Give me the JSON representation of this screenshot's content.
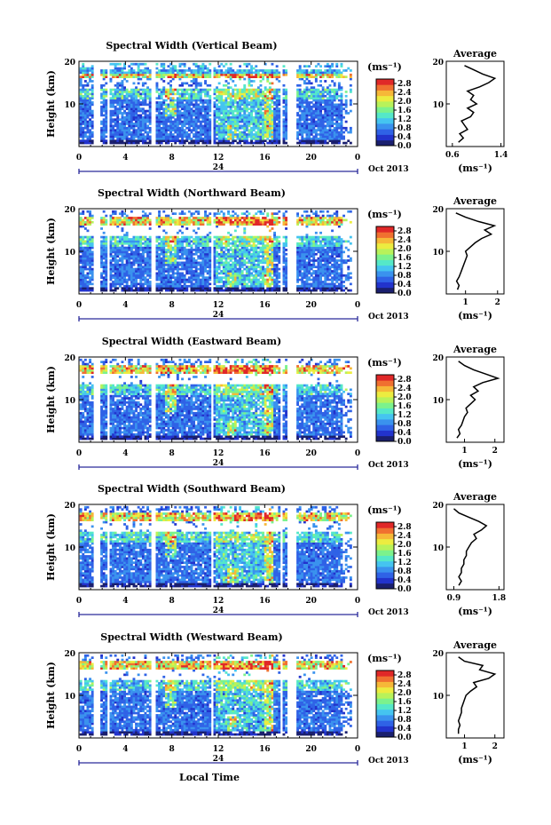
{
  "figure": {
    "xlabel": "Local Time",
    "date_label": "Oct 2013",
    "day_label": "24",
    "unit_label": "(ms⁻¹)",
    "profile_title": "Average",
    "height_label": "Height (km)"
  },
  "colors": {
    "scale": [
      "#1a1f6e",
      "#2233cc",
      "#2f62e6",
      "#3a92ee",
      "#45c4f0",
      "#55e8c8",
      "#7cf28c",
      "#b8f25a",
      "#ecec40",
      "#f6b838",
      "#f07030",
      "#e02828"
    ]
  },
  "chart_data": [
    {
      "type": "heatmap",
      "title": "Spectral Width (Vertical Beam)",
      "ylabel": "Height (km)",
      "xlim": [
        0,
        24
      ],
      "ylim": [
        0,
        20
      ],
      "xticks": [
        "0",
        "4",
        "8",
        "12",
        "16",
        "20",
        "0"
      ],
      "yticks": [
        "10",
        "20"
      ],
      "colorbar": {
        "ticks": [
          "0.0",
          "0.4",
          "0.8",
          "1.2",
          "1.6",
          "2.0",
          "2.4",
          "2.8"
        ],
        "range": [
          0,
          3.0
        ]
      },
      "profile": {
        "title": "Average",
        "xlabel": "(ms⁻¹)",
        "xticks": [
          "0.6",
          "1.4"
        ],
        "xlim": [
          0.5,
          1.45
        ],
        "yticks": [
          "10",
          "20"
        ],
        "heights": [
          1,
          2,
          3,
          4,
          5,
          6,
          7,
          8,
          9,
          10,
          11,
          12,
          13,
          14,
          15,
          16,
          17,
          18,
          19
        ],
        "values": [
          0.7,
          0.78,
          0.72,
          0.85,
          0.8,
          0.75,
          0.9,
          0.95,
          0.85,
          1.0,
          0.9,
          0.95,
          0.85,
          1.05,
          1.2,
          1.3,
          1.1,
          0.95,
          0.8
        ]
      }
    },
    {
      "type": "heatmap",
      "title": "Spectral Width (Northward Beam)",
      "ylabel": "Height (km)",
      "xlim": [
        0,
        24
      ],
      "ylim": [
        0,
        20
      ],
      "xticks": [
        "0",
        "4",
        "8",
        "12",
        "16",
        "20",
        "0"
      ],
      "yticks": [
        "10",
        "20"
      ],
      "colorbar": {
        "ticks": [
          "0.0",
          "0.4",
          "0.8",
          "1.2",
          "1.6",
          "2.0",
          "2.4",
          "2.8"
        ],
        "range": [
          0,
          3.0
        ]
      },
      "profile": {
        "title": "Average",
        "xlabel": "(ms⁻¹)",
        "xticks": [
          "1",
          "2"
        ],
        "xlim": [
          0.4,
          2.2
        ],
        "yticks": [
          "10",
          "20"
        ],
        "heights": [
          1,
          2,
          3,
          4,
          5,
          6,
          7,
          8,
          9,
          10,
          11,
          12,
          13,
          14,
          15,
          16,
          17,
          18,
          19
        ],
        "values": [
          0.75,
          0.8,
          0.72,
          0.8,
          0.85,
          0.9,
          0.95,
          1.0,
          1.05,
          1.0,
          1.15,
          1.3,
          1.5,
          1.8,
          1.6,
          1.9,
          1.4,
          1.0,
          0.7
        ]
      }
    },
    {
      "type": "heatmap",
      "title": "Spectral Width (Eastward Beam)",
      "ylabel": "Height (km)",
      "xlim": [
        0,
        24
      ],
      "ylim": [
        0,
        20
      ],
      "xticks": [
        "0",
        "4",
        "8",
        "12",
        "16",
        "20",
        "0"
      ],
      "yticks": [
        "10",
        "20"
      ],
      "colorbar": {
        "ticks": [
          "0.0",
          "0.4",
          "0.8",
          "1.2",
          "1.6",
          "2.0",
          "2.4",
          "2.8"
        ],
        "range": [
          0,
          3.0
        ]
      },
      "profile": {
        "title": "Average",
        "xlabel": "(ms⁻¹)",
        "xticks": [
          "1",
          "2"
        ],
        "xlim": [
          0.4,
          2.3
        ],
        "yticks": [
          "10",
          "20"
        ],
        "heights": [
          1,
          2,
          3,
          4,
          5,
          6,
          7,
          8,
          9,
          10,
          11,
          12,
          13,
          14,
          15,
          16,
          17,
          18,
          19
        ],
        "values": [
          0.75,
          0.85,
          0.8,
          0.9,
          0.95,
          1.0,
          1.1,
          1.05,
          1.2,
          1.35,
          1.2,
          1.45,
          1.3,
          1.6,
          2.1,
          1.7,
          1.3,
          1.0,
          0.8
        ]
      }
    },
    {
      "type": "heatmap",
      "title": "Spectral Width (Southward Beam)",
      "ylabel": "Height (km)",
      "xlim": [
        0,
        24
      ],
      "ylim": [
        0,
        20
      ],
      "xticks": [
        "0",
        "4",
        "8",
        "12",
        "16",
        "20",
        "0"
      ],
      "yticks": [
        "10",
        "20"
      ],
      "colorbar": {
        "ticks": [
          "0.0",
          "0.4",
          "0.8",
          "1.2",
          "1.6",
          "2.0",
          "2.4",
          "2.8"
        ],
        "range": [
          0,
          3.0
        ]
      },
      "profile": {
        "title": "Average",
        "xlabel": "(ms⁻¹)",
        "xticks": [
          "0.9",
          "1.8"
        ],
        "xlim": [
          0.75,
          1.9
        ],
        "yticks": [
          "10",
          "20"
        ],
        "heights": [
          1,
          2,
          3,
          4,
          5,
          6,
          7,
          8,
          9,
          10,
          11,
          12,
          13,
          14,
          15,
          16,
          17,
          18,
          19
        ],
        "values": [
          1.0,
          1.05,
          1.0,
          1.05,
          1.05,
          1.1,
          1.1,
          1.15,
          1.15,
          1.2,
          1.25,
          1.35,
          1.3,
          1.45,
          1.55,
          1.4,
          1.2,
          1.0,
          0.9
        ]
      }
    },
    {
      "type": "heatmap",
      "title": "Spectral Width (Westward Beam)",
      "ylabel": "Height (km)",
      "xlim": [
        0,
        24
      ],
      "ylim": [
        0,
        20
      ],
      "xticks": [
        "0",
        "4",
        "8",
        "12",
        "16",
        "20",
        "0"
      ],
      "yticks": [
        "10",
        "20"
      ],
      "colorbar": {
        "ticks": [
          "0.0",
          "0.4",
          "0.8",
          "1.2",
          "1.6",
          "2.0",
          "2.4",
          "2.8"
        ],
        "range": [
          0,
          3.0
        ]
      },
      "profile": {
        "title": "Average",
        "xlabel": "(ms⁻¹)",
        "xticks": [
          "1",
          "2"
        ],
        "xlim": [
          0.4,
          2.3
        ],
        "yticks": [
          "10",
          "20"
        ],
        "heights": [
          1,
          2,
          3,
          4,
          5,
          6,
          7,
          8,
          9,
          10,
          11,
          12,
          13,
          14,
          15,
          16,
          17,
          18,
          19
        ],
        "values": [
          0.8,
          0.8,
          0.85,
          0.8,
          0.85,
          0.9,
          0.9,
          0.95,
          1.0,
          1.05,
          1.2,
          1.4,
          1.3,
          1.8,
          2.0,
          1.5,
          1.6,
          1.0,
          0.8
        ]
      }
    }
  ]
}
